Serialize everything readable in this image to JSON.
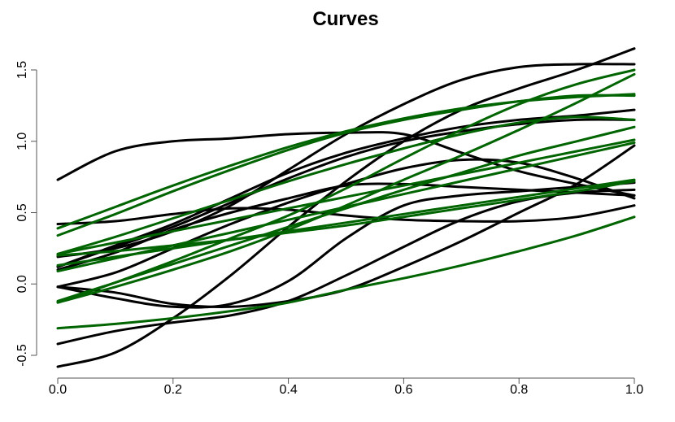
{
  "chart_data": {
    "type": "line",
    "title": "Curves",
    "xlabel": "",
    "ylabel": "",
    "xlim": [
      0,
      1
    ],
    "ylim": [
      -0.6,
      1.65
    ],
    "x_ticks": [
      0.0,
      0.2,
      0.4,
      0.6,
      0.8,
      1.0
    ],
    "x_tick_labels": [
      "0.0",
      "0.2",
      "0.4",
      "0.6",
      "0.8",
      "1.0"
    ],
    "y_ticks": [
      -0.5,
      0.0,
      0.5,
      1.0,
      1.5
    ],
    "y_tick_labels": [
      "-0.5",
      "0.0",
      "0.5",
      "1.0",
      "1.5"
    ],
    "grid": false,
    "legend": "none",
    "colors": {
      "black_series": "#000000",
      "green_series": "#006400"
    },
    "x": [
      0.0,
      0.1,
      0.2,
      0.3,
      0.4,
      0.5,
      0.6,
      0.7,
      0.8,
      0.9,
      1.0
    ],
    "series": [
      {
        "color": "#000000",
        "values": [
          0.73,
          0.93,
          1.0,
          1.02,
          1.05,
          1.06,
          1.05,
          0.92,
          0.79,
          0.7,
          0.62
        ]
      },
      {
        "color": "#000000",
        "values": [
          -0.58,
          -0.48,
          -0.24,
          0.06,
          0.4,
          0.72,
          1.0,
          1.22,
          1.37,
          1.5,
          1.65
        ]
      },
      {
        "color": "#000000",
        "values": [
          0.19,
          0.25,
          0.37,
          0.55,
          0.8,
          1.05,
          1.26,
          1.43,
          1.52,
          1.54,
          1.54
        ]
      },
      {
        "color": "#000000",
        "values": [
          0.42,
          0.44,
          0.49,
          0.53,
          0.52,
          0.48,
          0.45,
          0.44,
          0.44,
          0.47,
          0.55
        ]
      },
      {
        "color": "#000000",
        "values": [
          0.12,
          0.26,
          0.4,
          0.57,
          0.74,
          0.89,
          1.0,
          1.07,
          1.12,
          1.15,
          1.15
        ]
      },
      {
        "color": "#000000",
        "values": [
          -0.02,
          0.08,
          0.25,
          0.42,
          0.57,
          0.7,
          0.81,
          0.87,
          0.85,
          0.74,
          0.6
        ]
      },
      {
        "color": "#000000",
        "values": [
          -0.42,
          -0.33,
          -0.27,
          -0.22,
          -0.12,
          0.06,
          0.26,
          0.45,
          0.58,
          0.64,
          0.66
        ]
      },
      {
        "color": "#000000",
        "values": [
          -0.02,
          -0.06,
          -0.14,
          -0.16,
          -0.12,
          -0.04,
          0.12,
          0.3,
          0.5,
          0.7,
          0.97
        ]
      },
      {
        "color": "#000000",
        "values": [
          0.1,
          0.22,
          0.38,
          0.5,
          0.6,
          0.69,
          0.7,
          0.68,
          0.66,
          0.64,
          0.62
        ]
      },
      {
        "color": "#000000",
        "values": [
          0.12,
          0.27,
          0.42,
          0.6,
          0.78,
          0.92,
          1.02,
          1.1,
          1.15,
          1.18,
          1.22
        ]
      },
      {
        "color": "#000000",
        "values": [
          -0.02,
          -0.1,
          -0.16,
          -0.14,
          0.02,
          0.32,
          0.55,
          0.62,
          0.65,
          0.68,
          0.71
        ]
      },
      {
        "color": "#006400",
        "values": [
          0.34,
          0.49,
          0.65,
          0.8,
          0.94,
          1.06,
          1.15,
          1.22,
          1.28,
          1.32,
          1.32
        ]
      },
      {
        "color": "#006400",
        "values": [
          -0.13,
          0.01,
          0.16,
          0.32,
          0.48,
          0.67,
          0.88,
          1.08,
          1.26,
          1.4,
          1.5
        ]
      },
      {
        "color": "#006400",
        "values": [
          0.21,
          0.33,
          0.46,
          0.59,
          0.72,
          0.84,
          0.95,
          1.05,
          1.13,
          1.17,
          1.15
        ]
      },
      {
        "color": "#006400",
        "values": [
          0.09,
          0.18,
          0.27,
          0.36,
          0.45,
          0.54,
          0.63,
          0.72,
          0.81,
          0.9,
          0.99
        ]
      },
      {
        "color": "#006400",
        "values": [
          0.39,
          0.54,
          0.69,
          0.83,
          0.96,
          1.07,
          1.16,
          1.23,
          1.28,
          1.31,
          1.33
        ]
      },
      {
        "color": "#006400",
        "values": [
          0.21,
          0.29,
          0.37,
          0.45,
          0.53,
          0.61,
          0.69,
          0.77,
          0.85,
          0.93,
          1.01
        ]
      },
      {
        "color": "#006400",
        "values": [
          0.13,
          0.19,
          0.25,
          0.31,
          0.37,
          0.43,
          0.49,
          0.55,
          0.61,
          0.67,
          0.73
        ]
      },
      {
        "color": "#006400",
        "values": [
          -0.31,
          -0.28,
          -0.24,
          -0.19,
          -0.13,
          -0.04,
          0.04,
          0.13,
          0.23,
          0.34,
          0.47
        ]
      },
      {
        "color": "#006400",
        "values": [
          -0.13,
          -0.02,
          0.1,
          0.23,
          0.38,
          0.55,
          0.73,
          0.9,
          1.08,
          1.27,
          1.47
        ]
      },
      {
        "color": "#006400",
        "values": [
          0.2,
          0.23,
          0.27,
          0.31,
          0.36,
          0.41,
          0.47,
          0.53,
          0.59,
          0.65,
          0.72
        ]
      },
      {
        "color": "#006400",
        "values": [
          -0.12,
          0.01,
          0.14,
          0.27,
          0.4,
          0.53,
          0.66,
          0.78,
          0.9,
          1.0,
          1.1
        ]
      }
    ]
  }
}
